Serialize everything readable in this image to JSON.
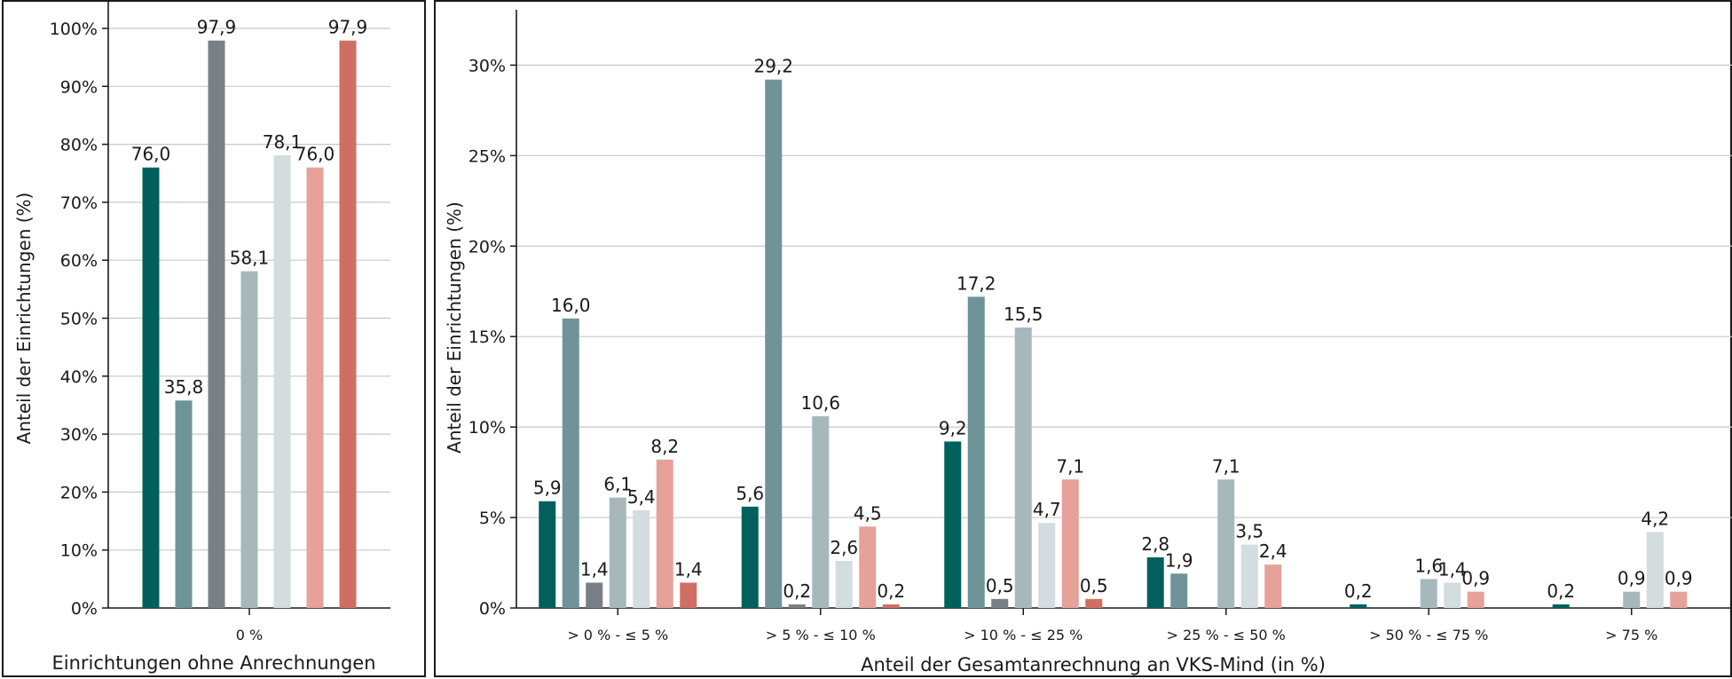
{
  "chart_data": [
    {
      "type": "bar",
      "categories": [
        "0 %"
      ],
      "xlabel": "Einrichtungen ohne Anrechnungen",
      "ylabel": "Anteil der Einrichtungen (%)",
      "ylim": [
        0,
        100
      ],
      "yticks": [
        "0%",
        "10%",
        "20%",
        "30%",
        "40%",
        "50%",
        "60%",
        "70%",
        "80%",
        "90%",
        "100%"
      ],
      "grid": true,
      "series": [
        {
          "color": "#00605c",
          "values": [
            76.0
          ],
          "labels": [
            "76,0"
          ]
        },
        {
          "color": "#6e9498",
          "values": [
            35.8
          ],
          "labels": [
            "35,8"
          ]
        },
        {
          "color": "#797f86",
          "values": [
            97.9
          ],
          "labels": [
            "97,9"
          ]
        },
        {
          "color": "#a6b8bc",
          "values": [
            58.1
          ],
          "labels": [
            "58,1"
          ]
        },
        {
          "color": "#d3dcdf",
          "values": [
            78.1
          ],
          "labels": [
            "78,1"
          ]
        },
        {
          "color": "#e6a198",
          "values": [
            76.0
          ],
          "labels": [
            "76,0"
          ]
        },
        {
          "color": "#cf6f63",
          "values": [
            97.9
          ],
          "labels": [
            "97,9"
          ]
        }
      ]
    },
    {
      "type": "bar",
      "categories": [
        "> 0 % - ≤ 5 %",
        "> 5 % - ≤ 10 %",
        "> 10 % - ≤ 25 %",
        "> 25 % - ≤ 50 %",
        "> 50 % - ≤ 75 %",
        "> 75 %"
      ],
      "xlabel": "Anteil der Gesamtanrechnung an VKS-Mind (in %)",
      "ylabel": "Anteil der Einrichtungen (%)",
      "ylim": [
        0,
        31
      ],
      "yticks": [
        "0%",
        "5%",
        "10%",
        "15%",
        "20%",
        "25%",
        "30%"
      ],
      "grid": true,
      "series": [
        {
          "color": "#00605c",
          "values": [
            5.9,
            5.6,
            9.2,
            2.8,
            0.2,
            0.2
          ],
          "labels": [
            "5,9",
            "5,6",
            "9,2",
            "2,8",
            "0,2",
            "0,2"
          ]
        },
        {
          "color": "#6e9498",
          "values": [
            16.0,
            29.2,
            17.2,
            1.9,
            null,
            null
          ],
          "labels": [
            "16,0",
            "29,2",
            "17,2",
            "1,9",
            "",
            ""
          ]
        },
        {
          "color": "#797f86",
          "values": [
            1.4,
            0.2,
            0.5,
            null,
            null,
            null
          ],
          "labels": [
            "1,4",
            "0,2",
            "0,5",
            "",
            "",
            ""
          ]
        },
        {
          "color": "#a6b8bc",
          "values": [
            6.1,
            10.6,
            15.5,
            7.1,
            1.6,
            0.9
          ],
          "labels": [
            "6,1",
            "10,6",
            "15,5",
            "7,1",
            "1,6",
            "0,9"
          ]
        },
        {
          "color": "#d3dcdf",
          "values": [
            5.4,
            2.6,
            4.7,
            3.5,
            1.4,
            4.2
          ],
          "labels": [
            "5,4",
            "2,6",
            "4,7",
            "3,5",
            "1,4",
            "4,2"
          ]
        },
        {
          "color": "#e6a198",
          "values": [
            8.2,
            4.5,
            7.1,
            2.4,
            0.9,
            0.9
          ],
          "labels": [
            "8,2",
            "4,5",
            "7,1",
            "2,4",
            "0,9",
            "0,9"
          ]
        },
        {
          "color": "#cf6f63",
          "values": [
            1.4,
            0.2,
            0.5,
            null,
            null,
            null
          ],
          "labels": [
            "1,4",
            "0,2",
            "0,5",
            "",
            "",
            ""
          ]
        }
      ]
    }
  ]
}
